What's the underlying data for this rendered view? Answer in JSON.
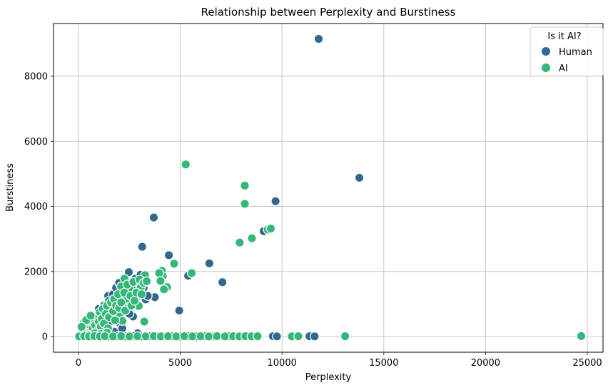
{
  "chart_data": {
    "type": "scatter",
    "title": "Relationship between Perplexity and Burstiness",
    "xlabel": "Perplexity",
    "ylabel": "Burstiness",
    "xlim": [
      -1227,
      25771
    ],
    "ylim": [
      -482,
      9623
    ],
    "xticks": [
      0,
      5000,
      10000,
      15000,
      20000,
      25000
    ],
    "yticks": [
      0,
      2000,
      4000,
      6000,
      8000
    ],
    "grid": true,
    "marker_radius": 6.2,
    "legend": {
      "title": "Is it AI?",
      "position": "upper right",
      "entries": [
        {
          "label": "Human",
          "color": "#31688e"
        },
        {
          "label": "AI",
          "color": "#35b779"
        }
      ]
    },
    "series": [
      {
        "name": "Human",
        "color": "#31688e",
        "points": [
          [
            11800,
            9150
          ],
          [
            13800,
            4880
          ],
          [
            9680,
            4160
          ],
          [
            3700,
            3660
          ],
          [
            9100,
            3240
          ],
          [
            3130,
            2760
          ],
          [
            4440,
            2500
          ],
          [
            6430,
            2250
          ],
          [
            2470,
            1980
          ],
          [
            5390,
            1870
          ],
          [
            7070,
            1670
          ],
          [
            3750,
            1210
          ],
          [
            4950,
            800
          ],
          [
            2790,
            1780
          ],
          [
            1460,
            1250
          ],
          [
            3300,
            1140
          ],
          [
            940,
            700
          ],
          [
            2680,
            615
          ],
          [
            1630,
            480
          ],
          [
            1200,
            600
          ],
          [
            900,
            400
          ],
          [
            600,
            200
          ],
          [
            1550,
            850
          ],
          [
            2050,
            400
          ],
          [
            2450,
            950
          ],
          [
            2750,
            1550
          ],
          [
            3050,
            1900
          ],
          [
            400,
            300
          ],
          [
            700,
            500
          ],
          [
            1000,
            850
          ],
          [
            1250,
            950
          ],
          [
            1500,
            1100
          ],
          [
            1700,
            1300
          ],
          [
            1850,
            1500
          ],
          [
            2000,
            1650
          ],
          [
            2200,
            1100
          ],
          [
            2350,
            1450
          ],
          [
            2500,
            700
          ],
          [
            2600,
            1500
          ],
          [
            2900,
            1250
          ],
          [
            3200,
            1500
          ],
          [
            2150,
            250
          ],
          [
            1750,
            150
          ],
          [
            2900,
            100
          ],
          [
            3400,
            1250
          ],
          [
            150,
            10
          ],
          [
            600,
            5
          ],
          [
            950,
            15
          ],
          [
            1500,
            5
          ],
          [
            1900,
            10
          ],
          [
            2300,
            5
          ],
          [
            2700,
            15
          ],
          [
            3100,
            5
          ],
          [
            3500,
            10
          ],
          [
            3900,
            5
          ],
          [
            4600,
            10
          ],
          [
            5000,
            5
          ],
          [
            5400,
            10
          ],
          [
            5800,
            5
          ],
          [
            6200,
            10
          ],
          [
            6650,
            5
          ],
          [
            7400,
            10
          ],
          [
            9550,
            10
          ],
          [
            9750,
            5
          ],
          [
            11350,
            10
          ],
          [
            11600,
            5
          ]
        ]
      },
      {
        "name": "AI",
        "color": "#35b779",
        "points": [
          [
            5270,
            5290
          ],
          [
            8170,
            4640
          ],
          [
            8170,
            4080
          ],
          [
            9300,
            3290
          ],
          [
            9450,
            3320
          ],
          [
            8520,
            3020
          ],
          [
            7920,
            2890
          ],
          [
            5560,
            1950
          ],
          [
            4700,
            2240
          ],
          [
            4100,
            2020
          ],
          [
            4140,
            1850
          ],
          [
            4350,
            1520
          ],
          [
            4200,
            1450
          ],
          [
            3270,
            1890
          ],
          [
            3960,
            1950
          ],
          [
            4030,
            1710
          ],
          [
            2090,
            1540
          ],
          [
            2500,
            1470
          ],
          [
            3060,
            1510
          ],
          [
            2090,
            1210
          ],
          [
            2360,
            1160
          ],
          [
            2960,
            940
          ],
          [
            1290,
            880
          ],
          [
            1670,
            920
          ],
          [
            1570,
            660
          ],
          [
            2020,
            700
          ],
          [
            940,
            500
          ],
          [
            2160,
            480
          ],
          [
            3230,
            460
          ],
          [
            2260,
            1780
          ],
          [
            100,
            60
          ],
          [
            200,
            150
          ],
          [
            300,
            80
          ],
          [
            350,
            280
          ],
          [
            450,
            200
          ],
          [
            500,
            380
          ],
          [
            550,
            120
          ],
          [
            650,
            450
          ],
          [
            700,
            250
          ],
          [
            750,
            550
          ],
          [
            820,
            350
          ],
          [
            900,
            620
          ],
          [
            950,
            180
          ],
          [
            1000,
            450
          ],
          [
            1050,
            750
          ],
          [
            1100,
            300
          ],
          [
            1150,
            550
          ],
          [
            1200,
            850
          ],
          [
            1250,
            400
          ],
          [
            1350,
            700
          ],
          [
            1400,
            950
          ],
          [
            1450,
            250
          ],
          [
            1500,
            600
          ],
          [
            1600,
            1050
          ],
          [
            1700,
            780
          ],
          [
            1750,
            1150
          ],
          [
            1800,
            500
          ],
          [
            1850,
            950
          ],
          [
            1950,
            1300
          ],
          [
            2000,
            880
          ],
          [
            2100,
            1050
          ],
          [
            2250,
            1350
          ],
          [
            2300,
            800
          ],
          [
            2400,
            1600
          ],
          [
            2550,
            1250
          ],
          [
            2600,
            950
          ],
          [
            2700,
            1680
          ],
          [
            2750,
            1100
          ],
          [
            2850,
            1350
          ],
          [
            3000,
            1750
          ],
          [
            3100,
            1300
          ],
          [
            3200,
            1650
          ],
          [
            3350,
            1700
          ],
          [
            500,
            50
          ],
          [
            800,
            100
          ],
          [
            1100,
            80
          ],
          [
            1400,
            120
          ],
          [
            260,
            420
          ],
          [
            380,
            500
          ],
          [
            600,
            640
          ],
          [
            150,
            300
          ],
          [
            30,
            5
          ],
          [
            280,
            10
          ],
          [
            520,
            5
          ],
          [
            780,
            12
          ],
          [
            1050,
            5
          ],
          [
            1300,
            10
          ],
          [
            1700,
            5
          ],
          [
            2100,
            12
          ],
          [
            2500,
            5
          ],
          [
            2900,
            10
          ],
          [
            3300,
            5
          ],
          [
            3700,
            12
          ],
          [
            4050,
            5
          ],
          [
            4400,
            10
          ],
          [
            4800,
            5
          ],
          [
            5200,
            12
          ],
          [
            5600,
            5
          ],
          [
            6000,
            10
          ],
          [
            6400,
            5
          ],
          [
            6800,
            12
          ],
          [
            7200,
            5
          ],
          [
            7600,
            10
          ],
          [
            7900,
            5
          ],
          [
            8200,
            12
          ],
          [
            8500,
            5
          ],
          [
            8800,
            10
          ],
          [
            10480,
            5
          ],
          [
            10800,
            10
          ],
          [
            13100,
            10
          ],
          [
            24700,
            15
          ]
        ]
      }
    ]
  },
  "style": {
    "grid_color": "#c8c8c8",
    "spine_color": "#000000",
    "tick_color": "#333333",
    "legend_border_color": "#cccccc",
    "marker_edge_color": "#ffffff"
  }
}
